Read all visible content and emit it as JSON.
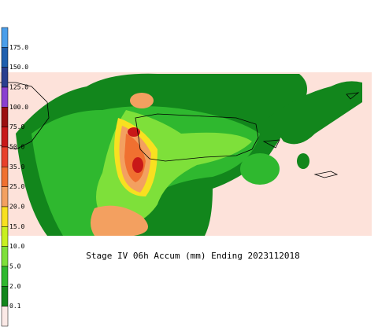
{
  "title": "Stage IV 06h Accum (mm) Ending 2023112018",
  "legend": {
    "entries": [
      {
        "label": null,
        "color": "#4a9eea"
      },
      {
        "label": "175.0",
        "color": "#1f5fae"
      },
      {
        "label": "150.0",
        "color": "#2b3f8f"
      },
      {
        "label": "125.0",
        "color": "#8a3fd0"
      },
      {
        "label": "100.0",
        "color": "#9b1010"
      },
      {
        "label": "75.0",
        "color": "#c81818"
      },
      {
        "label": "50.0",
        "color": "#e8402a"
      },
      {
        "label": "35.0",
        "color": "#f07030"
      },
      {
        "label": "25.0",
        "color": "#f3a060"
      },
      {
        "label": "20.0",
        "color": "#f8e020"
      },
      {
        "label": "15.0",
        "color": "#c8f020"
      },
      {
        "label": "10.0",
        "color": "#7ee03a"
      },
      {
        "label": "5.0",
        "color": "#2fb82f"
      },
      {
        "label": "2.0",
        "color": "#12861c"
      },
      {
        "label": "0.1",
        "color": "#fbe9e6"
      }
    ]
  }
}
